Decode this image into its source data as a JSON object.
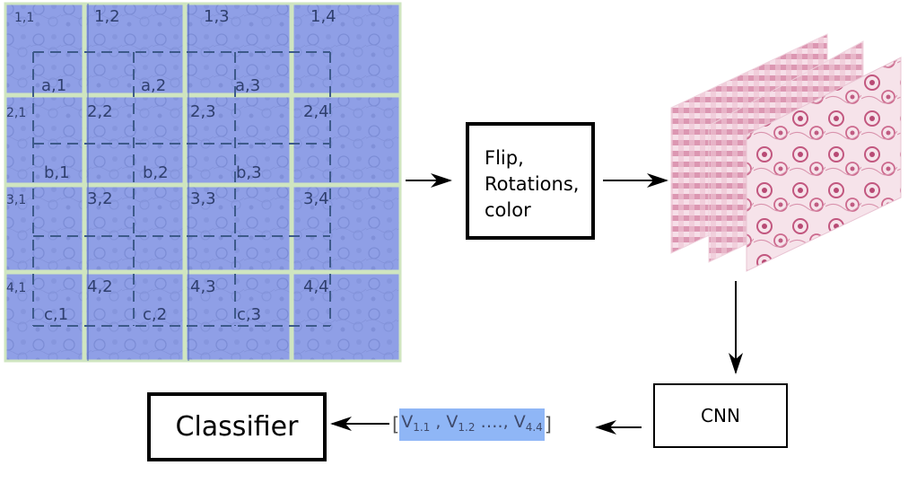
{
  "grid": {
    "outer_labels": [
      "1,1",
      "1,2",
      "1,3",
      "1,4",
      "2,1",
      "2,2",
      "2,3",
      "2,4",
      "3,1",
      "3,2",
      "3,3",
      "3,4",
      "4,1",
      "4,2",
      "4,3",
      "4,4"
    ],
    "inner_labels": [
      "a,1",
      "a,2",
      "a,3",
      "b,1",
      "b,2",
      "b,3",
      "c,1",
      "c,2",
      "c,3"
    ],
    "tile_color": "#8f9fe6",
    "grid_line_color": "#cfe5c0",
    "dash_color": "#3d5a8a",
    "label_color": "#2f3f6e"
  },
  "augment": {
    "lines": [
      "Flip,",
      "Rotations,",
      "color"
    ]
  },
  "model": {
    "label": "CNN"
  },
  "features": {
    "open": "[",
    "close": "]",
    "v1": "V",
    "v1_sub": "1.1",
    "sep1": " , ",
    "v2": "V",
    "v2_sub": "1.2",
    "ellipsis": " …., ",
    "v3": "V",
    "v3_sub": "4.4",
    "highlight_color": "#8fb6f6"
  },
  "classifier": {
    "label": "Classifier"
  },
  "patches": {
    "stain_color": "#d98aa8"
  }
}
